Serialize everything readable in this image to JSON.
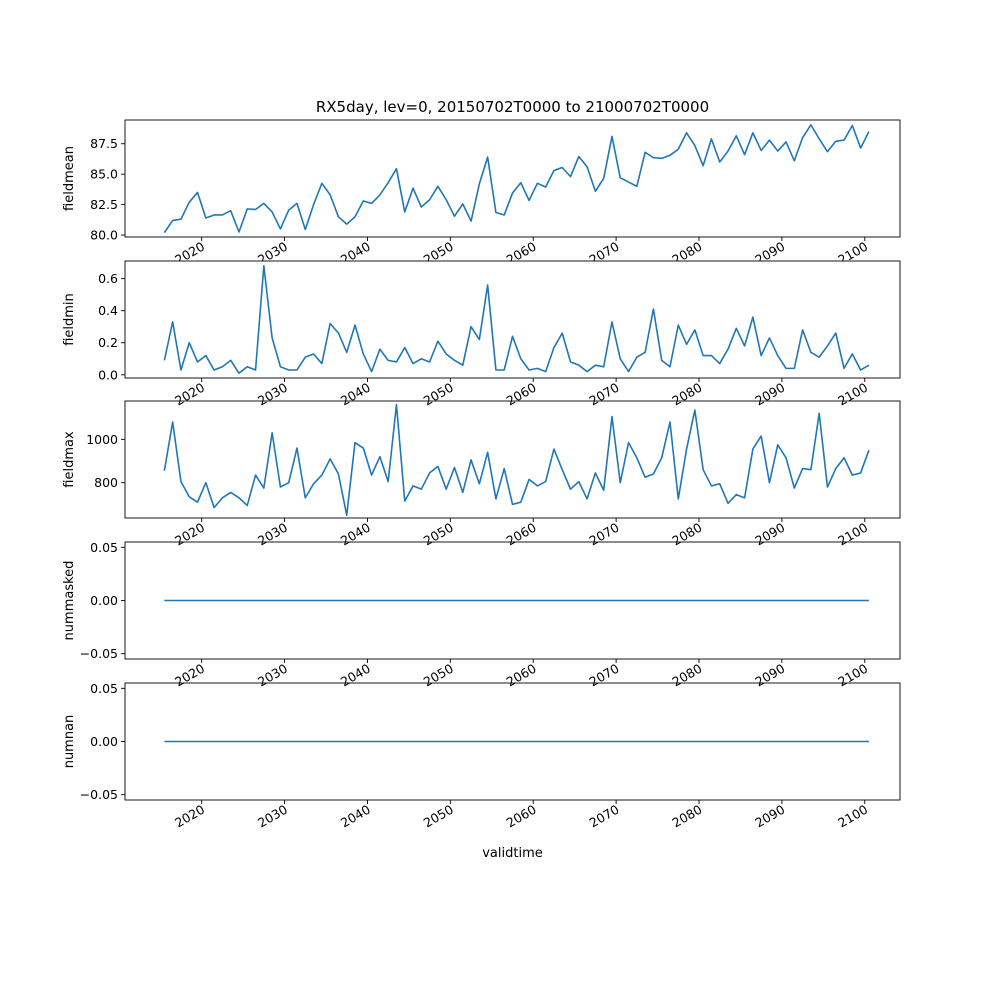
{
  "chart_data": {
    "type": "line",
    "title": "RX5day, lev=0, 20150702T0000 to 21000702T0000",
    "xlabel": "validtime",
    "x_tick_labels": [
      "2020",
      "2030",
      "2040",
      "2050",
      "2060",
      "2070",
      "2080",
      "2090",
      "2100"
    ],
    "x_ticks": [
      2020,
      2030,
      2040,
      2050,
      2060,
      2070,
      2080,
      2090,
      2100
    ],
    "xlim": [
      2010.75,
      2104.25
    ],
    "x_start": 2015.5,
    "x_step": 1,
    "line_color": "#1f77b4",
    "panels": [
      {
        "ylabel": "fieldmean",
        "ylim": [
          79.84,
          89.45
        ],
        "y_ticks": [
          80.0,
          82.5,
          85.0,
          87.5
        ],
        "y_tick_labels": [
          "80.0",
          "82.5",
          "85.0",
          "87.5"
        ],
        "series": [
          {
            "values": [
              80.2,
              81.2,
              81.3,
              82.7,
              83.5,
              81.4,
              81.65,
              81.65,
              82.0,
              80.25,
              82.15,
              82.1,
              82.6,
              81.9,
              80.5,
              82.05,
              82.6,
              80.45,
              82.5,
              84.25,
              83.3,
              81.5,
              80.9,
              81.5,
              82.8,
              82.6,
              83.3,
              84.3,
              85.45,
              81.9,
              83.85,
              82.3,
              82.9,
              84.0,
              82.9,
              81.55,
              82.55,
              81.15,
              84.2,
              86.4,
              81.85,
              81.65,
              83.45,
              84.3,
              82.85,
              84.25,
              83.95,
              85.3,
              85.55,
              84.8,
              86.45,
              85.6,
              83.6,
              84.65,
              88.1,
              84.7,
              84.35,
              84.0,
              86.8,
              86.35,
              86.3,
              86.55,
              87.05,
              88.4,
              87.35,
              85.7,
              87.9,
              86.0,
              86.9,
              88.15,
              86.6,
              88.4,
              86.95,
              87.8,
              86.9,
              87.65,
              86.1,
              88.0,
              89.05,
              87.9,
              86.85,
              87.7,
              87.8,
              89.0,
              87.15,
              88.5
            ]
          }
        ]
      },
      {
        "ylabel": "fieldmin",
        "ylim": [
          -0.02,
          0.71
        ],
        "y_ticks": [
          0.0,
          0.2,
          0.4,
          0.6
        ],
        "y_tick_labels": [
          "0.0",
          "0.2",
          "0.4",
          "0.6"
        ],
        "series": [
          {
            "values": [
              0.09,
              0.33,
              0.03,
              0.2,
              0.08,
              0.12,
              0.03,
              0.05,
              0.09,
              0.01,
              0.05,
              0.03,
              0.68,
              0.23,
              0.05,
              0.03,
              0.03,
              0.11,
              0.13,
              0.07,
              0.32,
              0.26,
              0.14,
              0.31,
              0.13,
              0.02,
              0.16,
              0.09,
              0.08,
              0.17,
              0.07,
              0.1,
              0.08,
              0.21,
              0.13,
              0.09,
              0.06,
              0.3,
              0.22,
              0.56,
              0.03,
              0.03,
              0.24,
              0.1,
              0.03,
              0.04,
              0.02,
              0.17,
              0.26,
              0.08,
              0.06,
              0.02,
              0.06,
              0.05,
              0.33,
              0.1,
              0.02,
              0.11,
              0.14,
              0.41,
              0.09,
              0.05,
              0.31,
              0.19,
              0.28,
              0.12,
              0.12,
              0.07,
              0.16,
              0.29,
              0.18,
              0.36,
              0.12,
              0.23,
              0.12,
              0.04,
              0.04,
              0.28,
              0.14,
              0.11,
              0.18,
              0.26,
              0.04,
              0.13,
              0.03,
              0.06
            ]
          }
        ]
      },
      {
        "ylabel": "fieldmax",
        "ylim": [
          637,
          1177
        ],
        "y_ticks": [
          800,
          1000
        ],
        "y_tick_labels": [
          "800",
          "1000"
        ],
        "series": [
          {
            "values": [
              855,
              1080,
              805,
              735,
              710,
              800,
              685,
              730,
              755,
              730,
              695,
              835,
              775,
              1030,
              780,
              800,
              960,
              730,
              795,
              835,
              910,
              840,
              650,
              985,
              960,
              835,
              920,
              805,
              1160,
              715,
              785,
              770,
              845,
              875,
              770,
              870,
              755,
              905,
              795,
              940,
              725,
              865,
              700,
              710,
              815,
              785,
              805,
              955,
              860,
              770,
              805,
              725,
              845,
              765,
              1105,
              800,
              985,
              915,
              825,
              840,
              915,
              1080,
              725,
              955,
              1135,
              860,
              785,
              795,
              705,
              745,
              730,
              955,
              1015,
              800,
              975,
              915,
              775,
              865,
              860,
              1120,
              780,
              865,
              915,
              835,
              845,
              950
            ]
          }
        ]
      },
      {
        "ylabel": "nummasked",
        "ylim": [
          -0.055,
          0.055
        ],
        "y_ticks": [
          -0.05,
          0.0,
          0.05
        ],
        "y_tick_labels": [
          "−0.05",
          "0.00",
          "0.05"
        ],
        "series": [
          {
            "values": [
              0,
              0,
              0,
              0,
              0,
              0,
              0,
              0,
              0,
              0,
              0,
              0,
              0,
              0,
              0,
              0,
              0,
              0,
              0,
              0,
              0,
              0,
              0,
              0,
              0,
              0,
              0,
              0,
              0,
              0,
              0,
              0,
              0,
              0,
              0,
              0,
              0,
              0,
              0,
              0,
              0,
              0,
              0,
              0,
              0,
              0,
              0,
              0,
              0,
              0,
              0,
              0,
              0,
              0,
              0,
              0,
              0,
              0,
              0,
              0,
              0,
              0,
              0,
              0,
              0,
              0,
              0,
              0,
              0,
              0,
              0,
              0,
              0,
              0,
              0,
              0,
              0,
              0,
              0,
              0,
              0,
              0,
              0,
              0,
              0,
              0
            ]
          }
        ]
      },
      {
        "ylabel": "numnan",
        "ylim": [
          -0.055,
          0.055
        ],
        "y_ticks": [
          -0.05,
          0.0,
          0.05
        ],
        "y_tick_labels": [
          "−0.05",
          "0.00",
          "0.05"
        ],
        "series": [
          {
            "values": [
              0,
              0,
              0,
              0,
              0,
              0,
              0,
              0,
              0,
              0,
              0,
              0,
              0,
              0,
              0,
              0,
              0,
              0,
              0,
              0,
              0,
              0,
              0,
              0,
              0,
              0,
              0,
              0,
              0,
              0,
              0,
              0,
              0,
              0,
              0,
              0,
              0,
              0,
              0,
              0,
              0,
              0,
              0,
              0,
              0,
              0,
              0,
              0,
              0,
              0,
              0,
              0,
              0,
              0,
              0,
              0,
              0,
              0,
              0,
              0,
              0,
              0,
              0,
              0,
              0,
              0,
              0,
              0,
              0,
              0,
              0,
              0,
              0,
              0,
              0,
              0,
              0,
              0,
              0,
              0,
              0,
              0,
              0,
              0,
              0,
              0
            ]
          }
        ]
      }
    ]
  }
}
